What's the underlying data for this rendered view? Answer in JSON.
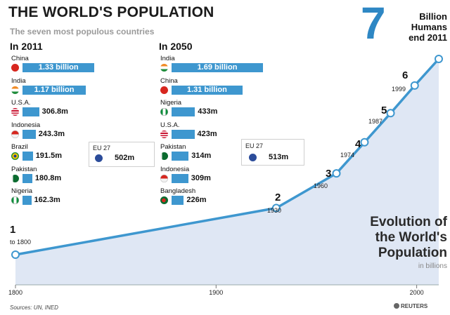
{
  "title": "THE WORLD'S POPULATION",
  "subtitle": "The seven most populous countries",
  "headline": {
    "number": "7",
    "caption": [
      "Billion",
      "Humans",
      "end 2011"
    ]
  },
  "evolution": {
    "lines": [
      "Evolution of",
      "the World's",
      "Population"
    ],
    "unit": "in billions"
  },
  "colors": {
    "bar": "#3e97cf",
    "line": "#3e97cf",
    "area": "#dfe7f4",
    "headline": "#2e87c4"
  },
  "eu_2011": {
    "label": "EU 27",
    "value_label": "502m",
    "value": 502
  },
  "eu_2050": {
    "label": "EU 27",
    "value_label": "513m",
    "value": 513
  },
  "sources": "Sources: UN, INED",
  "credit": "REUTERS",
  "chart_data": [
    {
      "type": "bar",
      "title": "In 2011",
      "categories": [
        "China",
        "India",
        "U.S.A.",
        "Indonesia",
        "Brazil",
        "Pakistan",
        "Nigeria"
      ],
      "values": [
        1330,
        1170,
        306.8,
        243.3,
        191.5,
        180.8,
        162.3
      ],
      "value_labels": [
        "1.33 billion",
        "1.17 billion",
        "306.8m",
        "243.3m",
        "191.5m",
        "180.8m",
        "162.3m"
      ],
      "flags": [
        "china",
        "india",
        "usa",
        "indonesia",
        "brazil",
        "pakistan",
        "nigeria"
      ]
    },
    {
      "type": "bar",
      "title": "In 2050",
      "categories": [
        "India",
        "China",
        "Nigeria",
        "U.S.A.",
        "Pakistan",
        "Indonesia",
        "Bangladesh"
      ],
      "values": [
        1690,
        1310,
        433,
        423,
        314,
        309,
        226
      ],
      "value_labels": [
        "1.69 billion",
        "1.31 billion",
        "433m",
        "423m",
        "314m",
        "309m",
        "226m"
      ],
      "flags": [
        "india",
        "china",
        "nigeria",
        "usa",
        "pakistan",
        "indonesia",
        "bangladesh"
      ]
    },
    {
      "type": "area",
      "title": "Evolution of the World's Population",
      "ylabel": "in billions",
      "x": [
        1800,
        1930,
        1960,
        1974,
        1987,
        1999,
        2011
      ],
      "y": [
        1,
        2,
        3,
        4,
        5,
        6,
        7
      ],
      "point_labels": [
        "1",
        "2",
        "3",
        "4",
        "5",
        "6",
        ""
      ],
      "year_labels": [
        "to 1800",
        "1930",
        "1960",
        "1974",
        "1987",
        "1999",
        ""
      ],
      "xticks": [
        1800,
        1900,
        2000
      ],
      "xlim": [
        1800,
        2011
      ],
      "ylim": [
        0,
        7
      ]
    }
  ]
}
